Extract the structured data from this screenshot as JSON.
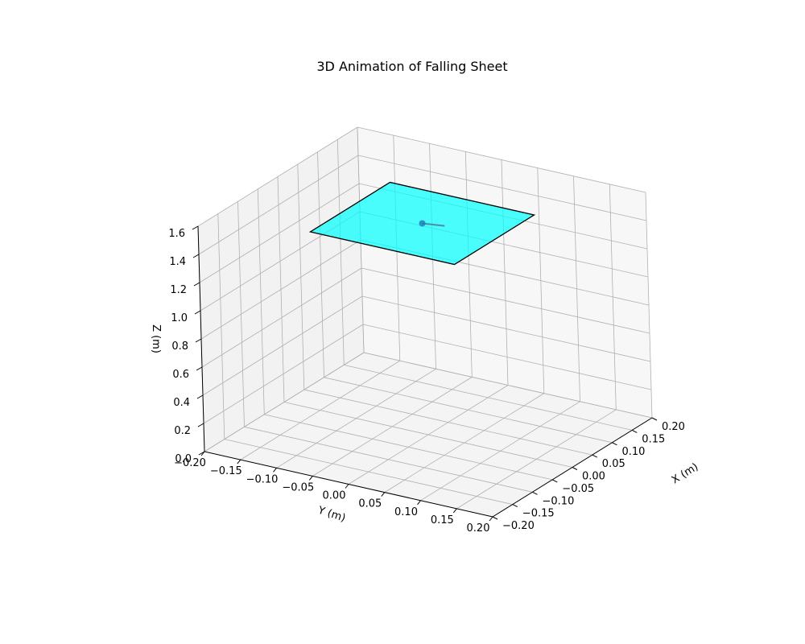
{
  "chart_data": {
    "type": "3d-surface",
    "title": "3D Animation of Falling Sheet",
    "xlabel": "X (m)",
    "ylabel": "Y (m)",
    "zlabel": "Z (m)",
    "xlim": [
      -0.2,
      0.2
    ],
    "ylim": [
      -0.2,
      0.2
    ],
    "zlim": [
      0,
      1.6
    ],
    "x_ticks": [
      "−0.20",
      "−0.15",
      "−0.10",
      "−0.05",
      "0.00",
      "0.05",
      "0.10",
      "0.15",
      "0.20"
    ],
    "y_ticks": [
      "−0.20",
      "−0.15",
      "−0.10",
      "−0.05",
      "0.00",
      "0.05",
      "0.10",
      "0.15",
      "0.20"
    ],
    "z_ticks": [
      "0.0",
      "0.2",
      "0.4",
      "0.6",
      "0.8",
      "1.0",
      "1.2",
      "1.4",
      "1.6"
    ],
    "grid": true,
    "sheet": {
      "color": "#00ffff",
      "edge_color": "#000000",
      "corners": [
        {
          "x": -0.1,
          "y": -0.1,
          "z": 1.5
        },
        {
          "x": -0.1,
          "y": 0.1,
          "z": 1.5
        },
        {
          "x": 0.1,
          "y": 0.1,
          "z": 1.5
        },
        {
          "x": 0.1,
          "y": -0.1,
          "z": 1.5
        }
      ]
    },
    "center_marker": {
      "color": "#1f77b4",
      "point": {
        "x": 0.0,
        "y": 0.0,
        "z": 1.5
      },
      "vector_end": {
        "x": 0.02,
        "y": 0.02,
        "z": 1.47
      }
    }
  }
}
